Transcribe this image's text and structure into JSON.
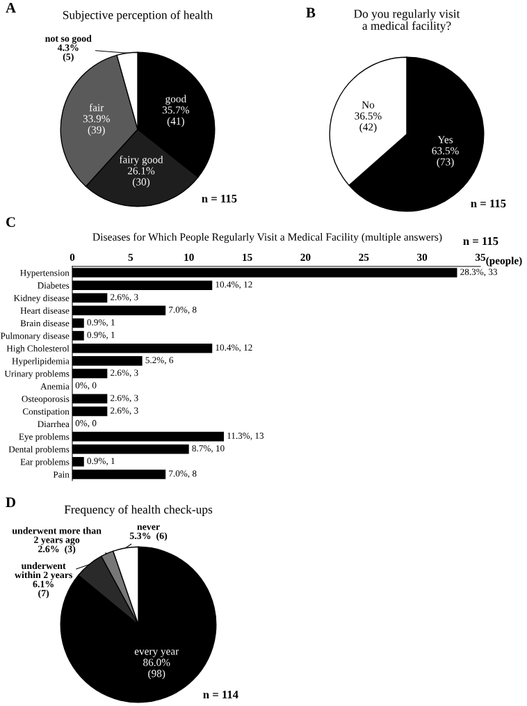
{
  "chart_data": [
    {
      "type": "pie",
      "title": "Subjective perception of health",
      "annotations": [
        "A",
        "n = 115"
      ],
      "categories": [
        "good",
        "fairy good",
        "fair",
        "not so good"
      ],
      "values": [
        41,
        30,
        39,
        5
      ],
      "value_labels": [
        "35.7%\n(41)",
        "26.1%\n(30)",
        "33.9%\n(39)",
        "4.3%\n(5)"
      ],
      "colors": [
        "#000000",
        "#1e1e1e",
        "#5a5a5a",
        "#ffffff"
      ]
    },
    {
      "type": "pie",
      "title": "Do you regularly visit\na medical facility?",
      "annotations": [
        "B",
        "n = 115"
      ],
      "categories": [
        "Yes",
        "No"
      ],
      "values": [
        73,
        42
      ],
      "value_labels": [
        "63.5%\n(73)",
        "36.5%\n(42)"
      ],
      "colors": [
        "#000000",
        "#ffffff"
      ]
    },
    {
      "type": "bar",
      "orientation": "horizontal",
      "title": "Diseases for Which People Regularly Visit a Medical Facility (multiple answers)",
      "xlabel": "(people)",
      "annotations": [
        "C",
        "n = 115"
      ],
      "categories": [
        "Hypertension",
        "Diabetes",
        "Kidney disease",
        "Heart disease",
        "Brain disease",
        "Pulmonary disease",
        "High Cholesterol",
        "Hyperlipidemia",
        "Urinary problems",
        "Anemia",
        "Osteoporosis",
        "Constipation",
        "Diarrhea",
        "Eye problems",
        "Dental problems",
        "Ear problems",
        "Pain"
      ],
      "values": [
        33,
        12,
        3,
        8,
        1,
        1,
        12,
        6,
        3,
        0,
        3,
        3,
        0,
        13,
        10,
        1,
        8
      ],
      "value_labels": [
        "28.3%, 33",
        "10.4%, 12",
        "2.6%, 3",
        "7.0%, 8",
        "0.9%, 1",
        "0.9%, 1",
        "10.4%, 12",
        "5.2%, 6",
        "2.6%, 3",
        "0%, 0",
        "2.6%, 3",
        "2.6%, 3",
        "0%, 0",
        "11.3%, 13",
        "8.7%, 10",
        "0.9%, 1",
        "7.0%, 8"
      ],
      "color": "#000000",
      "xlim": [
        0,
        35
      ],
      "xticks": [
        0,
        5,
        10,
        15,
        20,
        25,
        30,
        35
      ]
    },
    {
      "type": "pie",
      "title": "Frequency of health check-ups",
      "annotations": [
        "D",
        "n = 114"
      ],
      "categories": [
        "every year",
        "underwent\nwithin 2 years",
        "underwent more than\n2 years ago",
        "never"
      ],
      "values": [
        98,
        7,
        3,
        6
      ],
      "value_labels": [
        "86.0%\n(98)",
        "6.1%\n(7)",
        "2.6%  (3)",
        "5.3%  (6)"
      ],
      "colors": [
        "#000000",
        "#2a2a2a",
        "#777777",
        "#ffffff"
      ]
    }
  ]
}
